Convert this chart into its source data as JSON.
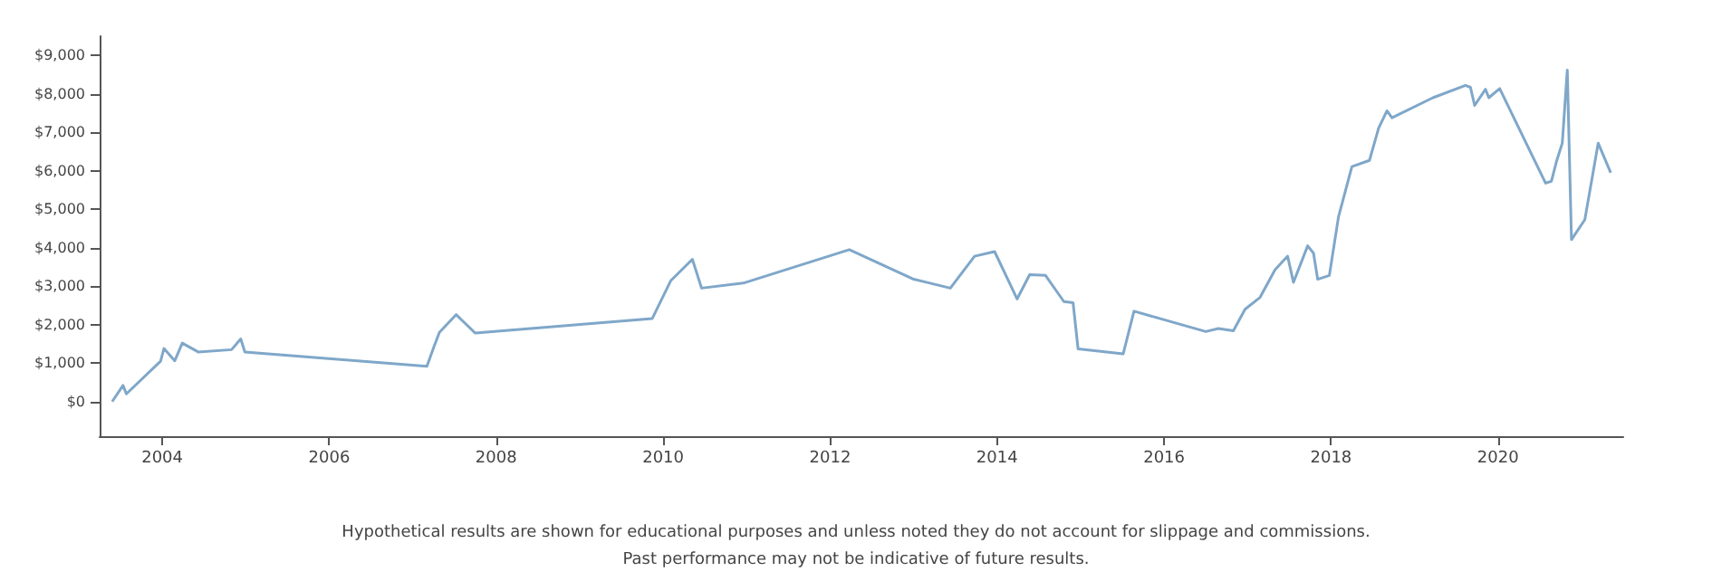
{
  "chart_data": {
    "type": "line",
    "x": [
      2003.4,
      2003.53,
      2003.57,
      2003.98,
      2004.02,
      2004.15,
      2004.24,
      2004.43,
      2004.83,
      2004.94,
      2004.99,
      2007.17,
      2007.25,
      2007.32,
      2007.52,
      2007.75,
      2009.87,
      2010.09,
      2010.35,
      2010.46,
      2010.96,
      2012.23,
      2012.99,
      2013.44,
      2013.73,
      2013.97,
      2014.24,
      2014.39,
      2014.58,
      2014.8,
      2014.91,
      2014.97,
      2015.51,
      2015.64,
      2016.5,
      2016.65,
      2016.83,
      2016.97,
      2017.15,
      2017.33,
      2017.48,
      2017.55,
      2017.72,
      2017.79,
      2017.84,
      2017.98,
      2018.09,
      2018.25,
      2018.46,
      2018.57,
      2018.67,
      2018.73,
      2019.22,
      2019.61,
      2019.67,
      2019.72,
      2019.85,
      2019.89,
      2020.02,
      2020.57,
      2020.64,
      2020.7,
      2020.77,
      2020.83,
      2020.88,
      2021.04,
      2021.2,
      2021.35
    ],
    "series": [
      {
        "color": "#7fa7c9",
        "values": [
          0,
          420,
          200,
          1050,
          1380,
          1060,
          1520,
          1290,
          1350,
          1630,
          1290,
          920,
          1400,
          1800,
          2260,
          1780,
          2160,
          3140,
          3700,
          2950,
          3080,
          3950,
          3190,
          2950,
          3780,
          3900,
          2670,
          3300,
          3280,
          2600,
          2570,
          1370,
          1240,
          2350,
          1820,
          1900,
          1840,
          2400,
          2710,
          3430,
          3780,
          3100,
          4050,
          3860,
          3180,
          3280,
          4810,
          6110,
          6270,
          7110,
          7560,
          7380,
          7900,
          8220,
          8170,
          7700,
          8120,
          7900,
          8140,
          5680,
          5730,
          6240,
          6720,
          8620,
          4210,
          4730,
          6720,
          5950
        ]
      }
    ],
    "xlim": [
      2003.25,
      2021.5
    ],
    "xticks": [
      2004,
      2006,
      2008,
      2010,
      2012,
      2014,
      2016,
      2018,
      2020
    ],
    "ylim": [
      -900,
      9500
    ],
    "yticks": [
      {
        "value": 0,
        "label": "$0"
      },
      {
        "value": 1000,
        "label": "$1,000"
      },
      {
        "value": 2000,
        "label": "$2,000"
      },
      {
        "value": 3000,
        "label": "$3,000"
      },
      {
        "value": 4000,
        "label": "$4,000"
      },
      {
        "value": 5000,
        "label": "$5,000"
      },
      {
        "value": 6000,
        "label": "$6,000"
      },
      {
        "value": 7000,
        "label": "$7,000"
      },
      {
        "value": 8000,
        "label": "$8,000"
      },
      {
        "value": 9000,
        "label": "$9,000"
      }
    ],
    "marker": "none",
    "line_style": "solid",
    "annotations": [
      "Hypothetical results are shown for educational purposes and unless noted they do not account for slippage and commissions.",
      "Past performance may not be indicative of future results."
    ]
  }
}
